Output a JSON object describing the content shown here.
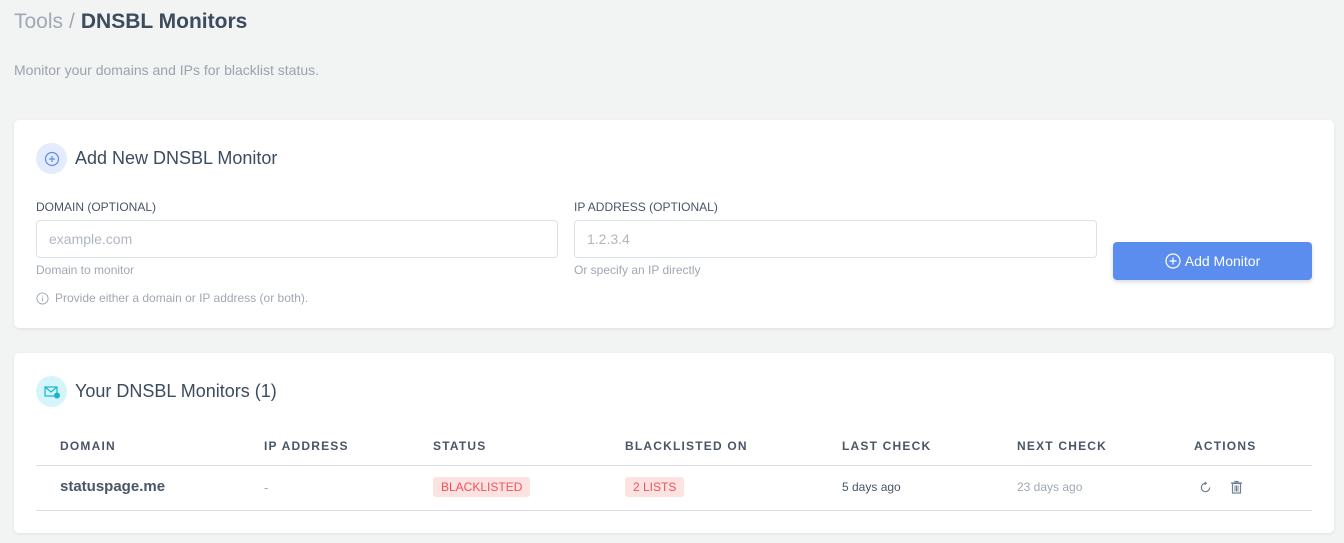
{
  "breadcrumb": {
    "parent": "Tools",
    "separator": "/",
    "current": "DNSBL Monitors"
  },
  "subtitle": "Monitor your domains and IPs for blacklist status.",
  "add_card": {
    "title": "Add New DNSBL Monitor",
    "domain_label": "DOMAIN (OPTIONAL)",
    "domain_placeholder": "example.com",
    "domain_value": "",
    "domain_help": "Domain to monitor",
    "ip_label": "IP ADDRESS (OPTIONAL)",
    "ip_placeholder": "1.2.3.4",
    "ip_value": "",
    "ip_help": "Or specify an IP directly",
    "note": "Provide either a domain or IP address (or both).",
    "button": "Add Monitor"
  },
  "list_card": {
    "title": "Your DNSBL Monitors (1)",
    "columns": [
      "DOMAIN",
      "IP ADDRESS",
      "STATUS",
      "BLACKLISTED ON",
      "LAST CHECK",
      "NEXT CHECK",
      "ACTIONS"
    ],
    "rows": [
      {
        "domain": "statuspage.me",
        "ip": "-",
        "status": "BLACKLISTED",
        "blacklisted_on": "2 LISTS",
        "last_check": "5 days ago",
        "next_check": "23 days ago",
        "actions": [
          "refresh-icon",
          "trash-icon"
        ]
      }
    ]
  },
  "colors": {
    "accent": "#5b8def",
    "danger": "#f0525a",
    "danger_bg": "#fde2e2"
  }
}
